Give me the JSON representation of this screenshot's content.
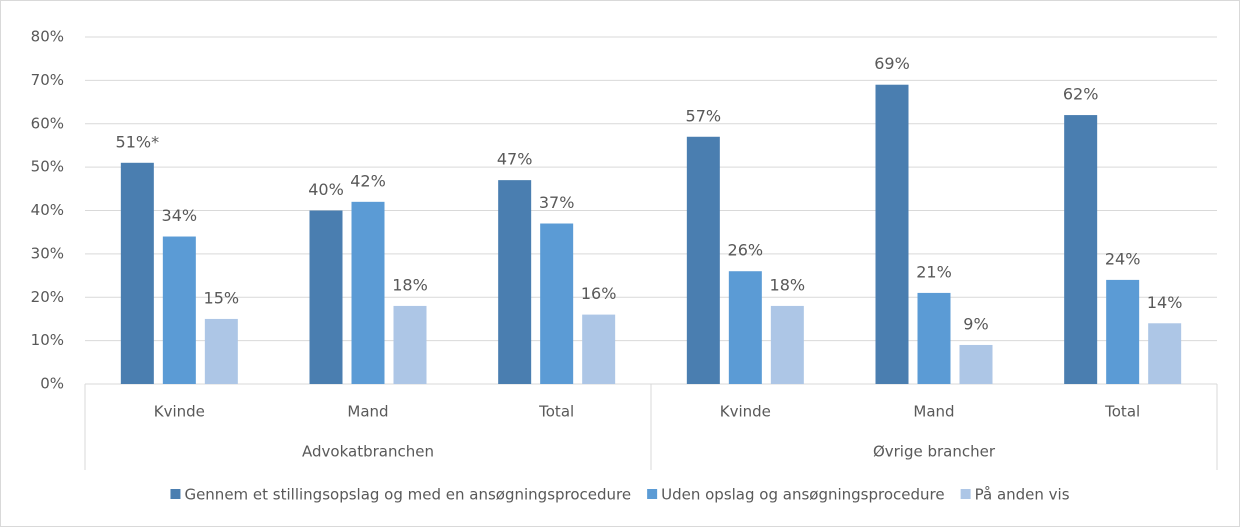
{
  "chart_data": {
    "type": "bar",
    "categories": [
      "Kvinde",
      "Mand",
      "Total",
      "Kvinde",
      "Mand",
      "Total"
    ],
    "group_labels": [
      "Advokatbranchen",
      "Øvrige brancher"
    ],
    "series": [
      {
        "name": "Gennem et stillingsopslag og med en ansøgningsprocedure",
        "color": "#4a7eb0",
        "values": [
          51,
          40,
          47,
          57,
          69,
          62
        ],
        "value_labels": [
          "51%*",
          "40%",
          "47%",
          "57%",
          "69%",
          "62%"
        ]
      },
      {
        "name": "Uden opslag og ansøgningsprocedure",
        "color": "#5b9bd5",
        "values": [
          34,
          42,
          37,
          26,
          21,
          24
        ],
        "value_labels": [
          "34%",
          "42%",
          "37%",
          "26%",
          "21%",
          "24%"
        ]
      },
      {
        "name": "På anden vis",
        "color": "#adc6e6",
        "values": [
          15,
          18,
          16,
          18,
          9,
          14
        ],
        "value_labels": [
          "15%",
          "18%",
          "16%",
          "18%",
          "9%",
          "14%"
        ]
      }
    ],
    "ylim": [
      0,
      80
    ],
    "yticks": [
      {
        "value": 0,
        "label": "0%"
      },
      {
        "value": 10,
        "label": "10%"
      },
      {
        "value": 20,
        "label": "20%"
      },
      {
        "value": 30,
        "label": "30%"
      },
      {
        "value": 40,
        "label": "40%"
      },
      {
        "value": 50,
        "label": "50%"
      },
      {
        "value": 60,
        "label": "60%"
      },
      {
        "value": 70,
        "label": "70%"
      },
      {
        "value": 80,
        "label": "80%"
      }
    ],
    "grid": true,
    "legend": "bottom"
  }
}
